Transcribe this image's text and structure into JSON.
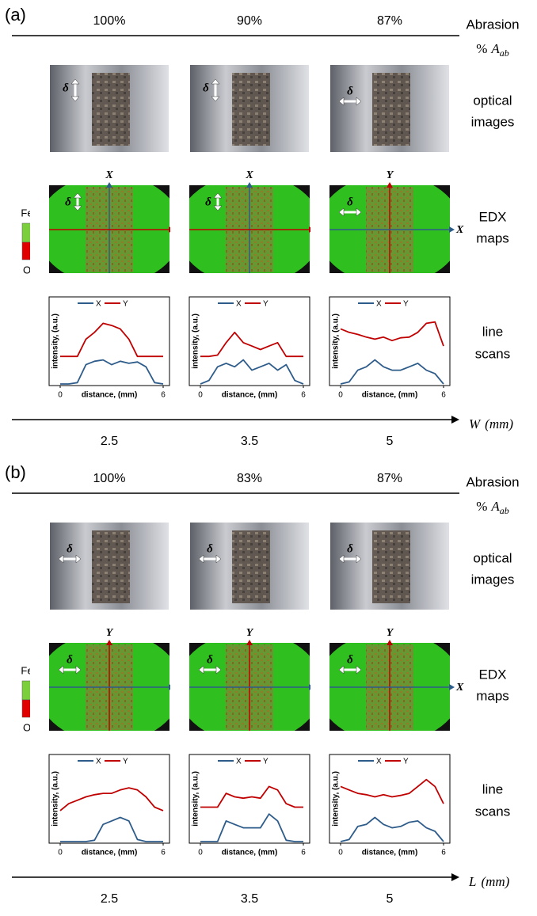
{
  "figure": {
    "abrasion_title": "Abrasion",
    "abrasion_unit": {
      "prefix": "%",
      "symbol": "A",
      "subscript": "ab"
    },
    "row_labels": [
      [
        "optical",
        "images"
      ],
      [
        "EDX",
        "maps"
      ],
      [
        "line",
        "scans"
      ]
    ],
    "element_legend": [
      "Fe",
      "O"
    ],
    "delta_symbol": "δ",
    "panels": [
      {
        "label": "(a)",
        "abrasion": [
          "100%",
          "90%",
          "87%"
        ],
        "x_axis": {
          "symbol": "W",
          "unit": "(mm)"
        },
        "x_values": [
          "2.5",
          "3.5",
          "5"
        ],
        "deltas": [
          "vertical",
          "vertical",
          "horizontal"
        ],
        "edx_axes": [
          {
            "vertical": "X",
            "horizontal": "Y"
          },
          {
            "vertical": "X",
            "horizontal": "Y"
          },
          {
            "vertical": "Y",
            "horizontal": "X"
          }
        ],
        "scans": [
          {
            "type": "line",
            "x_label": "distance, (mm)",
            "y_label": "intensity, (a.u.)",
            "xlim": [
              0,
              6
            ],
            "xticks": [
              0,
              6
            ],
            "ylim": [
              0,
              10
            ],
            "x": [
              0,
              0.5,
              1,
              1.5,
              2,
              2.5,
              3,
              3.5,
              4,
              4.5,
              5,
              5.5,
              6
            ],
            "series": [
              {
                "name": "X",
                "color": "#2e5c8a",
                "values": [
                  0,
                  0,
                  0.2,
                  2.8,
                  3.3,
                  3.5,
                  2.8,
                  3.3,
                  3,
                  3.2,
                  2.5,
                  0.2,
                  0
                ]
              },
              {
                "name": "Y",
                "color": "#c00000",
                "values": [
                  4,
                  4,
                  4,
                  6.5,
                  7.5,
                  8.8,
                  8.5,
                  8,
                  6.5,
                  4,
                  4,
                  4,
                  4
                ]
              }
            ]
          },
          {
            "type": "line",
            "x_label": "distance, (mm)",
            "y_label": "intensity, (a.u.)",
            "xlim": [
              0,
              6
            ],
            "xticks": [
              0,
              6
            ],
            "ylim": [
              0,
              10
            ],
            "x": [
              0,
              0.5,
              1,
              1.5,
              2,
              2.5,
              3,
              3.5,
              4,
              4.5,
              5,
              5.5,
              6
            ],
            "series": [
              {
                "name": "X",
                "color": "#2e5c8a",
                "values": [
                  0,
                  0.5,
                  2.5,
                  3,
                  2.5,
                  3.5,
                  2,
                  2.5,
                  3,
                  2,
                  2.8,
                  0.5,
                  0
                ]
              },
              {
                "name": "Y",
                "color": "#c00000",
                "values": [
                  4,
                  4,
                  4.2,
                  6,
                  7.5,
                  6,
                  5.5,
                  5,
                  5.5,
                  6,
                  4,
                  4,
                  4
                ]
              }
            ]
          },
          {
            "type": "line",
            "x_label": "distance, (mm)",
            "y_label": "intensity, (a.u.)",
            "xlim": [
              0,
              6
            ],
            "xticks": [
              0,
              6
            ],
            "ylim": [
              0,
              10
            ],
            "x": [
              0,
              0.5,
              1,
              1.5,
              2,
              2.5,
              3,
              3.5,
              4,
              4.5,
              5,
              5.5,
              6
            ],
            "series": [
              {
                "name": "X",
                "color": "#2e5c8a",
                "values": [
                  0,
                  0.3,
                  2,
                  2.5,
                  3.5,
                  2.5,
                  2,
                  2,
                  2.5,
                  3,
                  2,
                  1.5,
                  0
                ]
              },
              {
                "name": "Y",
                "color": "#c00000",
                "values": [
                  8,
                  7.5,
                  7.2,
                  6.8,
                  6.5,
                  6.8,
                  6.3,
                  6.7,
                  6.8,
                  7.5,
                  8.8,
                  9,
                  5.5
                ]
              }
            ]
          }
        ]
      },
      {
        "label": "(b)",
        "abrasion": [
          "100%",
          "83%",
          "87%"
        ],
        "x_axis": {
          "symbol": "L",
          "unit": "(mm)"
        },
        "x_values": [
          "2.5",
          "3.5",
          "5"
        ],
        "deltas": [
          "horizontal",
          "horizontal",
          "horizontal"
        ],
        "edx_axes": [
          {
            "vertical": "Y",
            "horizontal": "X"
          },
          {
            "vertical": "Y",
            "horizontal": "X"
          },
          {
            "vertical": "Y",
            "horizontal": "X"
          }
        ],
        "scans": [
          {
            "type": "line",
            "x_label": "distance, (mm)",
            "y_label": "intensity, (a.u.)",
            "xlim": [
              0,
              6
            ],
            "xticks": [
              0,
              6
            ],
            "ylim": [
              0,
              10
            ],
            "x": [
              0,
              0.5,
              1,
              1.5,
              2,
              2.5,
              3,
              3.5,
              4,
              4.5,
              5,
              5.5,
              6
            ],
            "series": [
              {
                "name": "X",
                "color": "#2e5c8a",
                "values": [
                  0,
                  0,
                  0,
                  0,
                  0.2,
                  2.5,
                  3,
                  3.5,
                  3,
                  0.3,
                  0,
                  0,
                  0
                ]
              },
              {
                "name": "Y",
                "color": "#c00000",
                "values": [
                  4.5,
                  5.5,
                  6,
                  6.5,
                  6.8,
                  7,
                  7,
                  7.5,
                  7.8,
                  7.5,
                  6.5,
                  5,
                  4.5
                ]
              }
            ]
          },
          {
            "type": "line",
            "x_label": "distance, (mm)",
            "y_label": "intensity, (a.u.)",
            "xlim": [
              0,
              6
            ],
            "xticks": [
              0,
              6
            ],
            "ylim": [
              0,
              10
            ],
            "x": [
              0,
              0.5,
              1,
              1.5,
              2,
              2.5,
              3,
              3.5,
              4,
              4.5,
              5,
              5.5,
              6
            ],
            "series": [
              {
                "name": "X",
                "color": "#2e5c8a",
                "values": [
                  0,
                  0,
                  0,
                  3,
                  2.5,
                  2,
                  2,
                  2,
                  4,
                  3,
                  0.2,
                  0,
                  0
                ]
              },
              {
                "name": "Y",
                "color": "#c00000",
                "values": [
                  5,
                  5,
                  5,
                  7,
                  6.5,
                  6.3,
                  6.5,
                  6.3,
                  8,
                  7.5,
                  5.5,
                  5,
                  5
                ]
              }
            ]
          },
          {
            "type": "line",
            "x_label": "distance, (mm)",
            "y_label": "intensity, (a.u.)",
            "xlim": [
              0,
              6
            ],
            "xticks": [
              0,
              6
            ],
            "ylim": [
              0,
              10
            ],
            "x": [
              0,
              0.5,
              1,
              1.5,
              2,
              2.5,
              3,
              3.5,
              4,
              4.5,
              5,
              5.5,
              6
            ],
            "series": [
              {
                "name": "X",
                "color": "#2e5c8a",
                "values": [
                  0,
                  0.3,
                  2.2,
                  2.5,
                  3.5,
                  2.5,
                  2,
                  2.2,
                  2.8,
                  3,
                  2,
                  1.5,
                  0
                ]
              },
              {
                "name": "Y",
                "color": "#c00000",
                "values": [
                  8,
                  7.5,
                  7,
                  6.8,
                  6.5,
                  6.8,
                  6.5,
                  6.7,
                  7,
                  8,
                  9,
                  8,
                  5.5
                ]
              }
            ]
          }
        ]
      }
    ]
  }
}
